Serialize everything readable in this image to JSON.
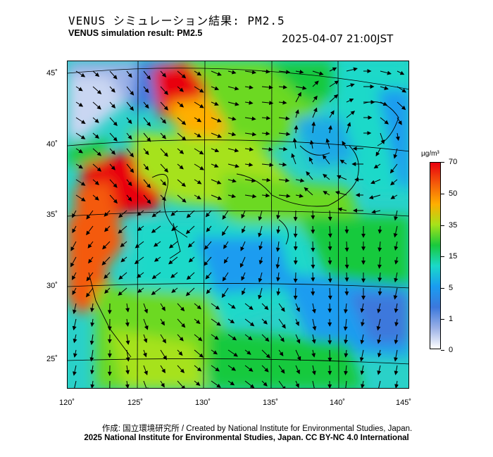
{
  "header": {
    "title_ja": "VENUS シミュレーション結果: PM2.5",
    "title_en": "VENUS simulation result: PM2.5",
    "timestamp": "2025-04-07 21:00JST"
  },
  "map": {
    "lat_labels": [
      "45˚",
      "40˚",
      "35˚",
      "30˚",
      "25˚"
    ],
    "lon_labels": [
      "120˚",
      "125˚",
      "130˚",
      "135˚",
      "140˚",
      "145˚"
    ],
    "lat_range": [
      23,
      46
    ],
    "lon_range": [
      120,
      145
    ]
  },
  "colorbar": {
    "unit": "µg/m³",
    "ticks": [
      "70",
      "50",
      "35",
      "15",
      "5",
      "1",
      "0"
    ],
    "colors": [
      "#e8000f",
      "#f45a0a",
      "#ffae00",
      "#a6e21a",
      "#19c93c",
      "#1ad9c9",
      "#1a9cf0",
      "#3c78dc",
      "#9ab0e6",
      "#ffffff"
    ]
  },
  "footer": {
    "credit": "作成: 国立環境研究所 / Created by National Institute for Environmental Studies, Japan.",
    "copyright": "2025 National Institute for Environmental Studies, Japan. CC BY-NC 4.0 International"
  }
}
